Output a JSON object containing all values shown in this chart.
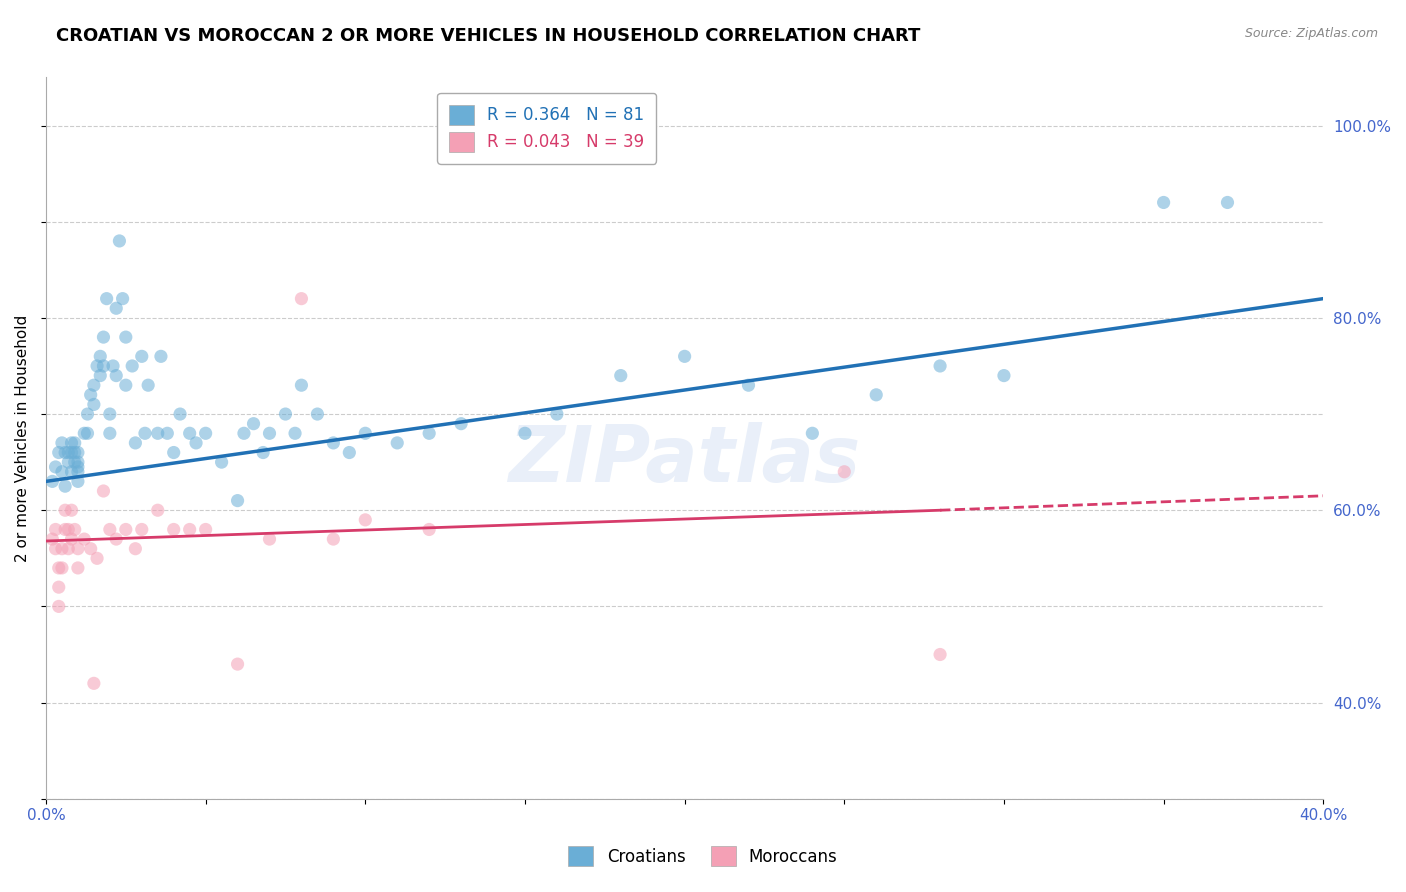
{
  "title": "CROATIAN VS MOROCCAN 2 OR MORE VEHICLES IN HOUSEHOLD CORRELATION CHART",
  "source": "Source: ZipAtlas.com",
  "ylabel": "2 or more Vehicles in Household",
  "watermark": "ZIPatlas",
  "xlim": [
    0.0,
    0.4
  ],
  "ylim": [
    0.3,
    1.05
  ],
  "xticks": [
    0.0,
    0.05,
    0.1,
    0.15,
    0.2,
    0.25,
    0.3,
    0.35,
    0.4
  ],
  "xticklabels": [
    "0.0%",
    "",
    "",
    "",
    "",
    "",
    "",
    "",
    "40.0%"
  ],
  "yticks_right": [
    0.4,
    0.6,
    0.8,
    1.0
  ],
  "ytick_right_labels": [
    "40.0%",
    "60.0%",
    "80.0%",
    "100.0%"
  ],
  "croatian_R": 0.364,
  "croatian_N": 81,
  "moroccan_R": 0.043,
  "moroccan_N": 39,
  "croatian_color": "#6aaed6",
  "moroccan_color": "#f4a0b5",
  "croatian_line_color": "#2171b5",
  "moroccan_line_color": "#d63b6a",
  "trend_line_croatian": {
    "x0": 0.0,
    "y0": 0.63,
    "x1": 0.4,
    "y1": 0.82
  },
  "trend_line_moroccan_solid": {
    "x0": 0.0,
    "y0": 0.568,
    "x1": 0.28,
    "y1": 0.6
  },
  "trend_line_moroccan_dash": {
    "x0": 0.28,
    "y0": 0.6,
    "x1": 0.4,
    "y1": 0.615
  },
  "croatian_x": [
    0.002,
    0.003,
    0.004,
    0.005,
    0.005,
    0.006,
    0.006,
    0.007,
    0.007,
    0.008,
    0.008,
    0.008,
    0.009,
    0.009,
    0.009,
    0.01,
    0.01,
    0.01,
    0.01,
    0.01,
    0.012,
    0.013,
    0.013,
    0.014,
    0.015,
    0.015,
    0.016,
    0.017,
    0.017,
    0.018,
    0.018,
    0.019,
    0.02,
    0.02,
    0.021,
    0.022,
    0.022,
    0.023,
    0.024,
    0.025,
    0.025,
    0.027,
    0.028,
    0.03,
    0.031,
    0.032,
    0.035,
    0.036,
    0.038,
    0.04,
    0.042,
    0.045,
    0.047,
    0.05,
    0.055,
    0.06,
    0.062,
    0.065,
    0.068,
    0.07,
    0.075,
    0.078,
    0.08,
    0.085,
    0.09,
    0.095,
    0.1,
    0.11,
    0.12,
    0.13,
    0.15,
    0.16,
    0.18,
    0.2,
    0.22,
    0.24,
    0.26,
    0.28,
    0.3,
    0.35,
    0.37
  ],
  "croatian_y": [
    0.63,
    0.645,
    0.66,
    0.67,
    0.64,
    0.625,
    0.66,
    0.65,
    0.66,
    0.67,
    0.64,
    0.66,
    0.67,
    0.65,
    0.66,
    0.64,
    0.65,
    0.66,
    0.645,
    0.63,
    0.68,
    0.7,
    0.68,
    0.72,
    0.73,
    0.71,
    0.75,
    0.74,
    0.76,
    0.78,
    0.75,
    0.82,
    0.68,
    0.7,
    0.75,
    0.81,
    0.74,
    0.88,
    0.82,
    0.78,
    0.73,
    0.75,
    0.67,
    0.76,
    0.68,
    0.73,
    0.68,
    0.76,
    0.68,
    0.66,
    0.7,
    0.68,
    0.67,
    0.68,
    0.65,
    0.61,
    0.68,
    0.69,
    0.66,
    0.68,
    0.7,
    0.68,
    0.73,
    0.7,
    0.67,
    0.66,
    0.68,
    0.67,
    0.68,
    0.69,
    0.68,
    0.7,
    0.74,
    0.76,
    0.73,
    0.68,
    0.72,
    0.75,
    0.74,
    0.92,
    0.92
  ],
  "moroccan_x": [
    0.002,
    0.003,
    0.003,
    0.004,
    0.004,
    0.004,
    0.005,
    0.005,
    0.006,
    0.006,
    0.007,
    0.007,
    0.008,
    0.008,
    0.009,
    0.01,
    0.01,
    0.012,
    0.014,
    0.015,
    0.016,
    0.018,
    0.02,
    0.022,
    0.025,
    0.028,
    0.03,
    0.035,
    0.04,
    0.045,
    0.05,
    0.06,
    0.07,
    0.08,
    0.09,
    0.1,
    0.12,
    0.25,
    0.28
  ],
  "moroccan_y": [
    0.57,
    0.58,
    0.56,
    0.54,
    0.52,
    0.5,
    0.56,
    0.54,
    0.58,
    0.6,
    0.56,
    0.58,
    0.57,
    0.6,
    0.58,
    0.54,
    0.56,
    0.57,
    0.56,
    0.42,
    0.55,
    0.62,
    0.58,
    0.57,
    0.58,
    0.56,
    0.58,
    0.6,
    0.58,
    0.58,
    0.58,
    0.44,
    0.57,
    0.82,
    0.57,
    0.59,
    0.58,
    0.64,
    0.45
  ],
  "background_color": "#ffffff",
  "grid_color": "#cccccc",
  "title_fontsize": 13,
  "axis_label_fontsize": 11,
  "tick_fontsize": 11,
  "legend_fontsize": 12,
  "marker_size": 90,
  "marker_alpha": 0.55
}
